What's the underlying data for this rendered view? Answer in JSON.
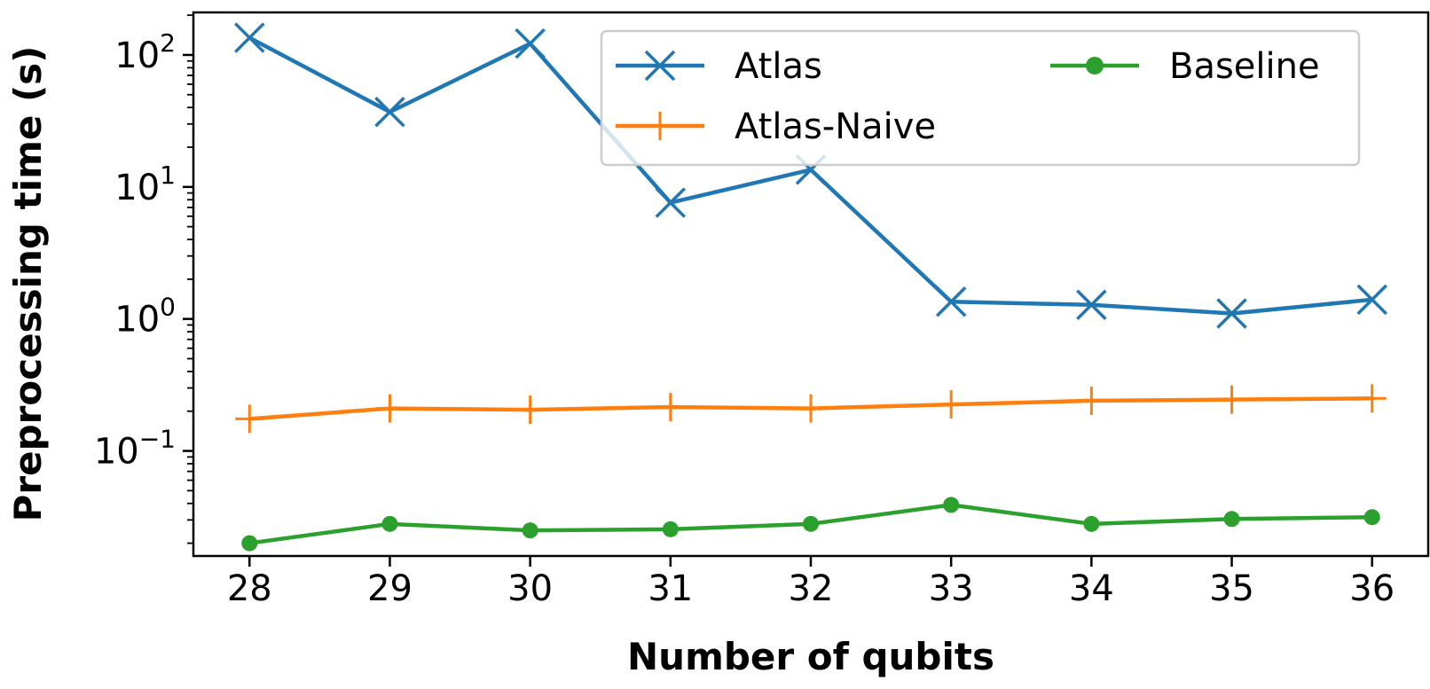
{
  "chart_data": {
    "type": "line",
    "title": "",
    "xlabel": "Number of qubits",
    "ylabel": "Preprocessing time (s)",
    "yscale": "log",
    "x": [
      28,
      29,
      30,
      31,
      32,
      33,
      34,
      35,
      36
    ],
    "xlim": [
      27.6,
      36.4
    ],
    "ylim": [
      0.016,
      210
    ],
    "xticks": [
      "28",
      "29",
      "30",
      "31",
      "32",
      "33",
      "34",
      "35",
      "36"
    ],
    "yticks": [
      {
        "value": 100,
        "base": "10",
        "exp": "2"
      },
      {
        "value": 10,
        "base": "10",
        "exp": "1"
      },
      {
        "value": 1,
        "base": "10",
        "exp": "0"
      },
      {
        "value": 0.1,
        "base": "10",
        "exp": "−1"
      }
    ],
    "grid": false,
    "legend": {
      "position": "top-right",
      "columns": 2
    },
    "series": [
      {
        "name": "Atlas",
        "color": "#1f77b4",
        "marker": "x",
        "values": [
          135,
          37,
          122,
          7.6,
          13.5,
          1.35,
          1.28,
          1.1,
          1.4
        ]
      },
      {
        "name": "Atlas-Naive",
        "color": "#ff7f0e",
        "marker": "plus",
        "values": [
          0.175,
          0.21,
          0.205,
          0.215,
          0.21,
          0.225,
          0.24,
          0.245,
          0.25
        ]
      },
      {
        "name": "Baseline",
        "color": "#2ca02c",
        "marker": "circle",
        "values": [
          0.02,
          0.028,
          0.025,
          0.0255,
          0.028,
          0.039,
          0.028,
          0.0305,
          0.0315
        ]
      }
    ]
  }
}
